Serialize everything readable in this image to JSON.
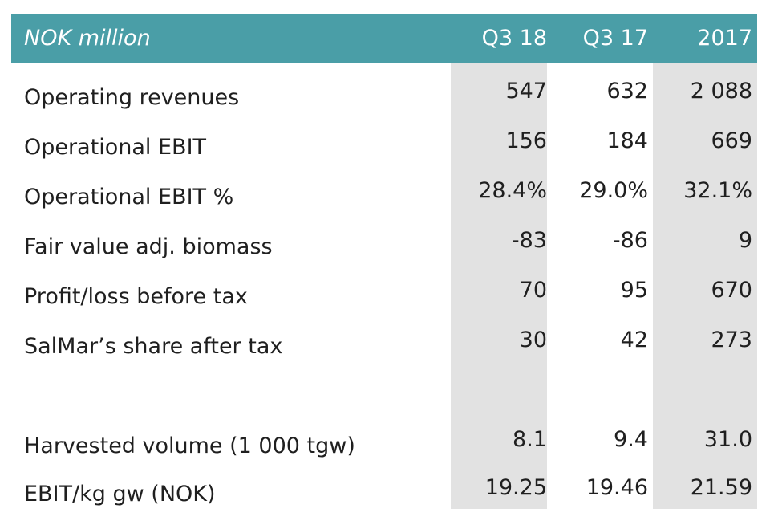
{
  "table": {
    "header": {
      "label": "NOK million",
      "columns": [
        "Q3 18",
        "Q3 17",
        "2017"
      ]
    },
    "rows": [
      {
        "label": "Operating revenues",
        "values": [
          "547",
          "632",
          "2 088"
        ]
      },
      {
        "label": "Operational EBIT",
        "values": [
          "156",
          "184",
          "669"
        ]
      },
      {
        "label": "Operational EBIT %",
        "values": [
          "28.4%",
          "29.0%",
          "32.1%"
        ]
      },
      {
        "label": "Fair value adj. biomass",
        "values": [
          "-83",
          "-86",
          "9"
        ]
      },
      {
        "label": "Profit/loss before tax",
        "values": [
          "70",
          "95",
          "670"
        ]
      },
      {
        "label": "SalMar’s share after tax",
        "values": [
          "30",
          "42",
          "273"
        ]
      },
      {
        "label": "Harvested volume (1 000 tgw)",
        "values": [
          "8.1",
          "9.4",
          "31.0"
        ]
      },
      {
        "label": "EBIT/kg gw (NOK)",
        "values": [
          "19.25",
          "19.46",
          "21.59"
        ]
      }
    ],
    "colors": {
      "header_bg": "#4a9ea7",
      "header_text": "#ffffff",
      "shaded_column": "#e2e2e2"
    }
  }
}
